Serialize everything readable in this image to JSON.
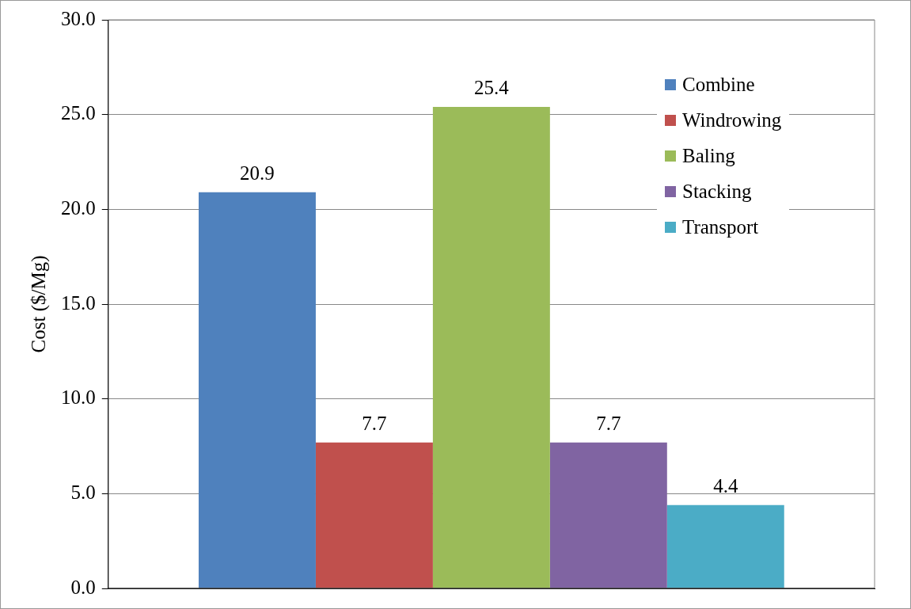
{
  "chart_data": {
    "type": "bar",
    "ylabel": "Cost ($/Mg)",
    "categories": [
      null
    ],
    "series": [
      {
        "name": "Combine",
        "color": "#4f81bd",
        "values": [
          20.9
        ]
      },
      {
        "name": "Windrowing",
        "color": "#c0504d",
        "values": [
          7.7
        ]
      },
      {
        "name": "Baling",
        "color": "#9bbb59",
        "values": [
          25.4
        ]
      },
      {
        "name": "Stacking",
        "color": "#8064a2",
        "values": [
          7.7
        ]
      },
      {
        "name": "Transport",
        "color": "#4bacc6",
        "values": [
          4.4
        ]
      }
    ],
    "ylim": [
      0,
      30
    ],
    "yticks": [
      {
        "value": 0,
        "label": "0.0"
      },
      {
        "value": 5,
        "label": "5.0"
      },
      {
        "value": 10,
        "label": "10.0"
      },
      {
        "value": 15,
        "label": "15.0"
      },
      {
        "value": 20,
        "label": "20.0"
      },
      {
        "value": 25,
        "label": "25.0"
      },
      {
        "value": 30,
        "label": "30.0"
      }
    ],
    "grid": "y",
    "legend": "top right",
    "data_labels": true
  }
}
